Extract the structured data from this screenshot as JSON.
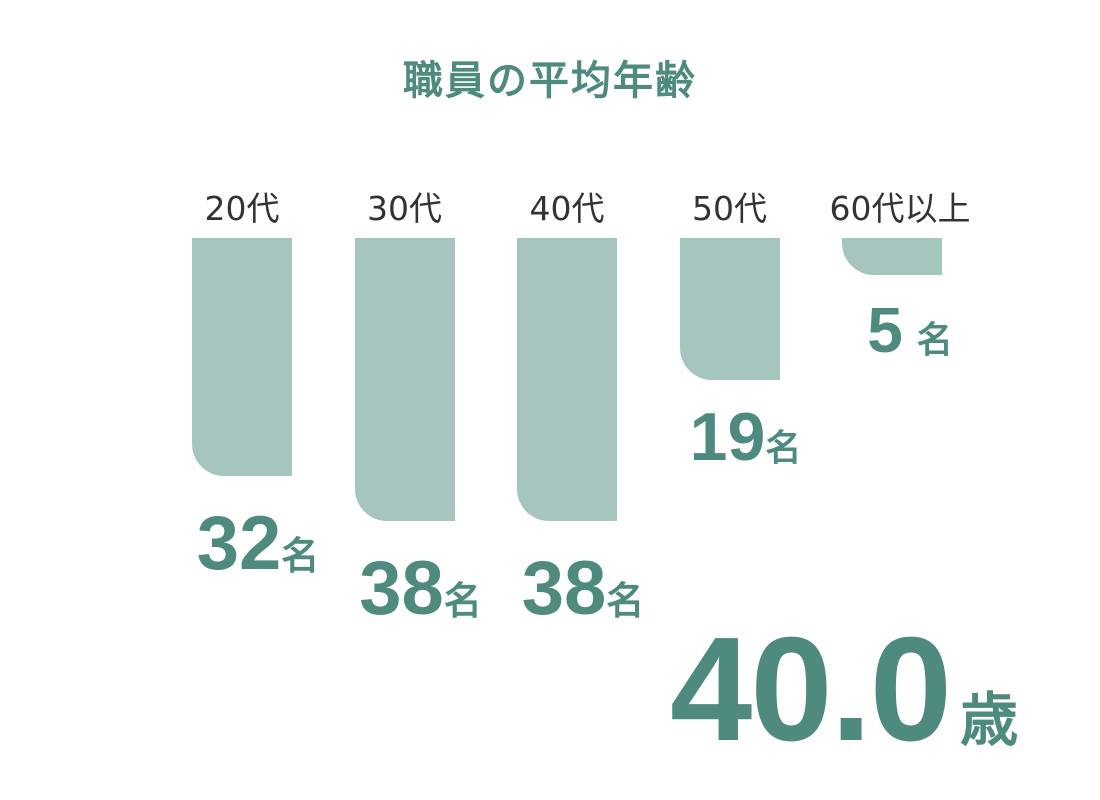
{
  "chart_data": {
    "type": "bar",
    "title": "職員の平均年齢",
    "categories": [
      "20代",
      "30代",
      "40代",
      "50代",
      "60代以上"
    ],
    "values": [
      32,
      38,
      38,
      19,
      5
    ],
    "unit": "名",
    "orientation": "downward",
    "bar_color": "#a7c5bf",
    "accent_color": "#4e8a7e"
  },
  "average": {
    "value": "40.0",
    "unit": "歳"
  }
}
